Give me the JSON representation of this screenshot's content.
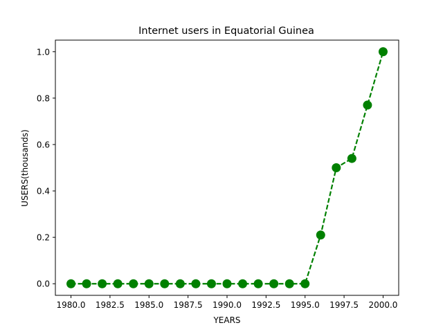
{
  "chart_data": {
    "type": "line",
    "title": "Internet users in Equatorial Guinea",
    "xlabel": "YEARS",
    "ylabel": "USERS(thousands)",
    "x": [
      1980,
      1981,
      1982,
      1983,
      1984,
      1985,
      1986,
      1987,
      1988,
      1989,
      1990,
      1991,
      1992,
      1993,
      1994,
      1995,
      1996,
      1997,
      1998,
      1999,
      2000
    ],
    "series": [
      {
        "values": [
          0,
          0,
          0,
          0,
          0,
          0,
          0,
          0,
          0,
          0,
          0,
          0,
          0,
          0,
          0,
          0,
          0.21,
          0.5,
          0.54,
          0.77,
          1.0
        ],
        "color": "#008000",
        "line_style": "dashed",
        "marker": "circle"
      }
    ],
    "xlim": [
      1979,
      2001
    ],
    "ylim": [
      -0.05,
      1.05
    ],
    "xticks": [
      1980.0,
      1982.5,
      1985.0,
      1987.5,
      1990.0,
      1992.5,
      1995.0,
      1997.5,
      2000.0
    ],
    "xtick_labels": [
      "1980.0",
      "1982.5",
      "1985.0",
      "1987.5",
      "1990.0",
      "1992.5",
      "1995.0",
      "1997.5",
      "2000.0"
    ],
    "yticks": [
      0.0,
      0.2,
      0.4,
      0.6,
      0.8,
      1.0
    ],
    "ytick_labels": [
      "0.0",
      "0.2",
      "0.4",
      "0.6",
      "0.8",
      "1.0"
    ],
    "grid": false,
    "legend": false
  }
}
